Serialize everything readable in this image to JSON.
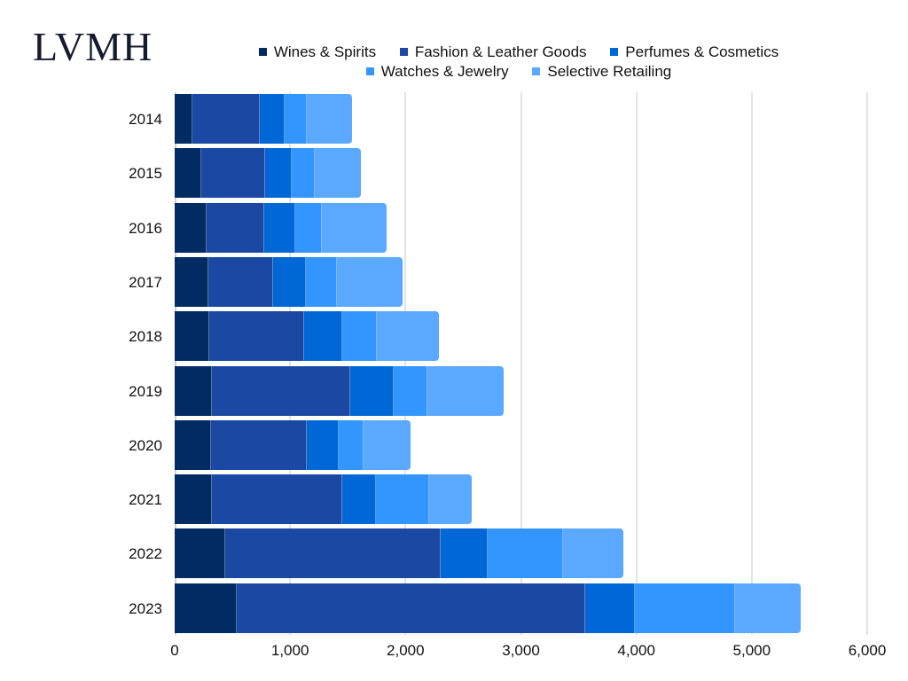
{
  "logo": "LVMH",
  "legend": [
    {
      "label": "Wines & Spirits",
      "color": "#002b63"
    },
    {
      "label": "Fashion & Leather Goods",
      "color": "#1a48a2"
    },
    {
      "label": "Perfumes & Cosmetics",
      "color": "#0067d6"
    },
    {
      "label": "Watches & Jewelry",
      "color": "#3396ff"
    },
    {
      "label": "Selective Retailing",
      "color": "#5aa9ff"
    }
  ],
  "x_ticks": [
    "0",
    "1,000",
    "2,000",
    "3,000",
    "4,000",
    "5,000",
    "6,000"
  ],
  "chart_data": {
    "type": "bar",
    "orientation": "horizontal",
    "stacked": true,
    "title": "LVMH",
    "xlabel": "",
    "ylabel": "",
    "xlim": [
      0,
      6000
    ],
    "grid": true,
    "legend_position": "top",
    "categories": [
      "2014",
      "2015",
      "2016",
      "2017",
      "2018",
      "2019",
      "2020",
      "2021",
      "2022",
      "2023"
    ],
    "series": [
      {
        "name": "Wines & Spirits",
        "color": "#002b63",
        "values": [
          154,
          230,
          277,
          292,
          300,
          323,
          315,
          323,
          438,
          538
        ]
      },
      {
        "name": "Fashion & Leather Goods",
        "color": "#1a48a2",
        "values": [
          584,
          553,
          499,
          561,
          822,
          1198,
          830,
          1129,
          1867,
          3019
        ]
      },
      {
        "name": "Perfumes & Cosmetics",
        "color": "#0067d6",
        "values": [
          215,
          230,
          269,
          284,
          330,
          376,
          277,
          292,
          407,
          430
        ]
      },
      {
        "name": "Watches & Jewelry",
        "color": "#3396ff",
        "values": [
          192,
          200,
          230,
          269,
          300,
          292,
          215,
          461,
          653,
          868
        ]
      },
      {
        "name": "Selective Retailing",
        "color": "#5aa9ff",
        "values": [
          392,
          400,
          561,
          568,
          538,
          661,
          407,
          369,
          522,
          568
        ]
      }
    ]
  }
}
